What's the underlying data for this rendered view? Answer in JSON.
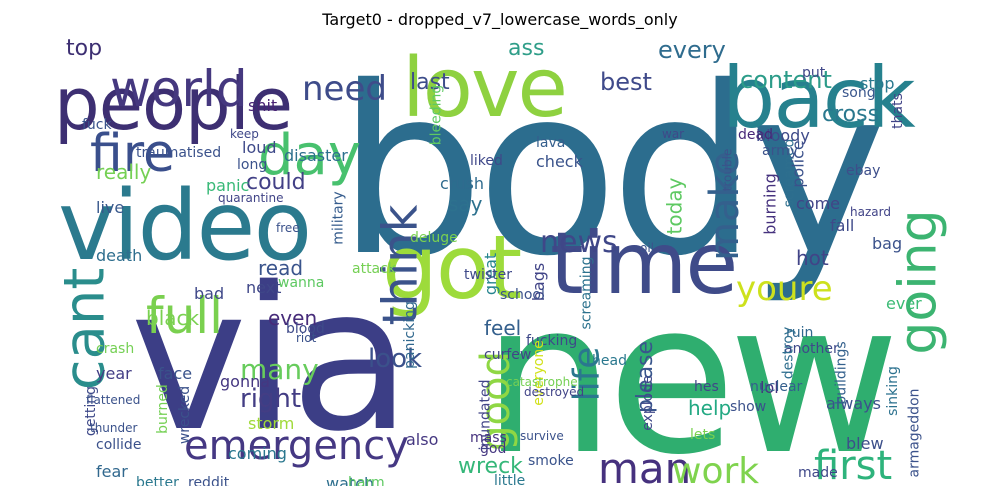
{
  "title": "Target0 - dropped_v7_lowercase_words_only",
  "words": [
    {
      "text": "body",
      "color": "#2c6d8e"
    },
    {
      "text": "new",
      "color": "#2fae6f"
    },
    {
      "text": "via",
      "color": "#3c3e86"
    },
    {
      "text": "video",
      "color": "#2b7a8e"
    },
    {
      "text": "people",
      "color": "#3d2f72"
    },
    {
      "text": "love",
      "color": "#8ed140"
    },
    {
      "text": "back",
      "color": "#26818e"
    },
    {
      "text": "got",
      "color": "#9ddb3b"
    },
    {
      "text": "time",
      "color": "#3f4b89"
    },
    {
      "text": "world",
      "color": "#45387f"
    },
    {
      "text": "fire",
      "color": "#3a4f8c"
    },
    {
      "text": "day",
      "color": "#48c16e"
    },
    {
      "text": "cant",
      "color": "#2a8d8c"
    },
    {
      "text": "full",
      "color": "#7ad04f"
    },
    {
      "text": "think",
      "color": "#3b538b"
    },
    {
      "text": "going",
      "color": "#3cb471"
    },
    {
      "text": "emergency",
      "color": "#453883"
    },
    {
      "text": "man",
      "color": "#46317e"
    },
    {
      "text": "work",
      "color": "#7fd34e"
    },
    {
      "text": "first",
      "color": "#2eb37c"
    },
    {
      "text": "news",
      "color": "#3f4788"
    },
    {
      "text": "need",
      "color": "#3e4c8a"
    },
    {
      "text": "good",
      "color": "#8fd744"
    },
    {
      "text": "make",
      "color": "#34608d"
    },
    {
      "text": "youre",
      "color": "#cde11d"
    },
    {
      "text": "life",
      "color": "#2a778e"
    },
    {
      "text": "look",
      "color": "#3b518b"
    },
    {
      "text": "many",
      "color": "#67cc5c"
    },
    {
      "text": "right",
      "color": "#433d84"
    },
    {
      "text": "content",
      "color": "#2c9c89"
    },
    {
      "text": "best",
      "color": "#3f4a8a"
    },
    {
      "text": "every",
      "color": "#2f6c8e"
    },
    {
      "text": "last",
      "color": "#3d4d8a"
    },
    {
      "text": "top",
      "color": "#3d2f72"
    },
    {
      "text": "ass",
      "color": "#2f9e89"
    },
    {
      "text": "cross",
      "color": "#2a788e"
    },
    {
      "text": "could",
      "color": "#424086"
    },
    {
      "text": "really",
      "color": "#75d054"
    },
    {
      "text": "read",
      "color": "#3a548c"
    },
    {
      "text": "even",
      "color": "#472c7a"
    },
    {
      "text": "black",
      "color": "#7ad151"
    },
    {
      "text": "wreck",
      "color": "#35b779"
    },
    {
      "text": "please",
      "color": "#39568c"
    },
    {
      "text": "help",
      "color": "#23a983"
    },
    {
      "text": "today",
      "color": "#5ec962"
    },
    {
      "text": "hot",
      "color": "#414487"
    },
    {
      "text": "feel",
      "color": "#35608d"
    },
    {
      "text": "always",
      "color": "#3b528b"
    },
    {
      "text": "fall",
      "color": "#3e4a89"
    },
    {
      "text": "ever",
      "color": "#3bbb75"
    },
    {
      "text": "lol",
      "color": "#46337f"
    },
    {
      "text": "blew",
      "color": "#3c4f8a"
    },
    {
      "text": "fear",
      "color": "#31688e"
    },
    {
      "text": "death",
      "color": "#2e6e8e"
    },
    {
      "text": "live",
      "color": "#38588c"
    },
    {
      "text": "panic",
      "color": "#38b977"
    },
    {
      "text": "disaster",
      "color": "#2d708e"
    },
    {
      "text": "loud",
      "color": "#3e4989"
    },
    {
      "text": "storm",
      "color": "#a0da39"
    },
    {
      "text": "watch",
      "color": "#2e6f8e"
    },
    {
      "text": "also",
      "color": "#453781"
    },
    {
      "text": "face",
      "color": "#3a538b"
    },
    {
      "text": "coming",
      "color": "#2a778e"
    },
    {
      "text": "gonna",
      "color": "#453781"
    },
    {
      "text": "year",
      "color": "#433e85"
    },
    {
      "text": "bad",
      "color": "#3f4889"
    },
    {
      "text": "next",
      "color": "#3f4788"
    },
    {
      "text": "shit",
      "color": "#482374"
    },
    {
      "text": "keep",
      "color": "#3f4889"
    },
    {
      "text": "long",
      "color": "#3b528b"
    },
    {
      "text": "great",
      "color": "#25848e"
    },
    {
      "text": "say",
      "color": "#2d718e"
    },
    {
      "text": "bags",
      "color": "#414487"
    },
    {
      "text": "crush",
      "color": "#2f6b8e"
    },
    {
      "text": "check",
      "color": "#3a538b"
    },
    {
      "text": "lava",
      "color": "#355f8d"
    },
    {
      "text": "liked",
      "color": "#3f4889"
    },
    {
      "text": "bleeding",
      "color": "#5ec962"
    },
    {
      "text": "military",
      "color": "#365c8d"
    },
    {
      "text": "screaming",
      "color": "#2c728e"
    },
    {
      "text": "deluge",
      "color": "#7ad151"
    },
    {
      "text": "burning",
      "color": "#46327e"
    },
    {
      "text": "screamed",
      "color": "#2e6f8e"
    },
    {
      "text": "police",
      "color": "#3b518b"
    },
    {
      "text": "come",
      "color": "#414487"
    },
    {
      "text": "bloody",
      "color": "#3e4a89"
    },
    {
      "text": "army",
      "color": "#3b528b"
    },
    {
      "text": "dead",
      "color": "#482878"
    },
    {
      "text": "ebay",
      "color": "#3d4e8a"
    },
    {
      "text": "stop",
      "color": "#2a788e"
    },
    {
      "text": "song",
      "color": "#39568c"
    },
    {
      "text": "put",
      "color": "#3f4788"
    },
    {
      "text": "fucking",
      "color": "#3e4989"
    },
    {
      "text": "head",
      "color": "#2a788e"
    },
    {
      "text": "ruin",
      "color": "#31688e"
    },
    {
      "text": "another",
      "color": "#3e4a89"
    },
    {
      "text": "hes",
      "color": "#404688"
    },
    {
      "text": "explode",
      "color": "#3f4889"
    },
    {
      "text": "nuclear",
      "color": "#355f8d"
    },
    {
      "text": "show",
      "color": "#3b518b"
    },
    {
      "text": "sinking",
      "color": "#2c718e"
    },
    {
      "text": "destroy",
      "color": "#2e6e8e"
    },
    {
      "text": "buildings",
      "color": "#34618d"
    },
    {
      "text": "armageddon",
      "color": "#3b528b"
    },
    {
      "text": "made",
      "color": "#3f4889"
    },
    {
      "text": "god",
      "color": "#453781"
    },
    {
      "text": "lets",
      "color": "#7ad151"
    },
    {
      "text": "smoke",
      "color": "#3a538b"
    },
    {
      "text": "harm",
      "color": "#5ec962"
    },
    {
      "text": "inundated",
      "color": "#414487"
    },
    {
      "text": "everyone",
      "color": "#d2e21b"
    },
    {
      "text": "wrecked",
      "color": "#3b528b"
    },
    {
      "text": "crash",
      "color": "#75d054"
    },
    {
      "text": "better",
      "color": "#2a788e"
    },
    {
      "text": "reddit",
      "color": "#3b528b"
    },
    {
      "text": "burned",
      "color": "#75d054"
    },
    {
      "text": "getting",
      "color": "#3e4989"
    },
    {
      "text": "collide",
      "color": "#3b518b"
    },
    {
      "text": "blood",
      "color": "#3e4a89"
    },
    {
      "text": "wanna",
      "color": "#5ec962"
    },
    {
      "text": "twister",
      "color": "#3e4989"
    },
    {
      "text": "school",
      "color": "#3b528b"
    },
    {
      "text": "curfew",
      "color": "#414487"
    },
    {
      "text": "panicking",
      "color": "#31688e"
    },
    {
      "text": "traumatised",
      "color": "#3b528b"
    },
    {
      "text": "quarantine",
      "color": "#414487"
    },
    {
      "text": "fuck",
      "color": "#3a538b"
    },
    {
      "text": "war",
      "color": "#3e4989"
    },
    {
      "text": "trouble",
      "color": "#3b528b"
    },
    {
      "text": "hazard",
      "color": "#414487"
    },
    {
      "text": "bag",
      "color": "#3b528b"
    },
    {
      "text": "thats",
      "color": "#414487"
    },
    {
      "text": "thunder",
      "color": "#3b528b"
    },
    {
      "text": "flattened",
      "color": "#3b528b"
    },
    {
      "text": "mass",
      "color": "#46327e"
    },
    {
      "text": "little",
      "color": "#2a788e"
    },
    {
      "text": "survive",
      "color": "#3b528b"
    },
    {
      "text": "destroyed",
      "color": "#414487"
    },
    {
      "text": "catastrophe",
      "color": "#75d054"
    },
    {
      "text": "attack",
      "color": "#75d054"
    },
    {
      "text": "riot",
      "color": "#3b528b"
    },
    {
      "text": "free",
      "color": "#3b528b"
    },
    {
      "text": "oil",
      "color": "#3b528b"
    },
    {
      "text": "video",
      "color": "#3b528b"
    }
  ]
}
